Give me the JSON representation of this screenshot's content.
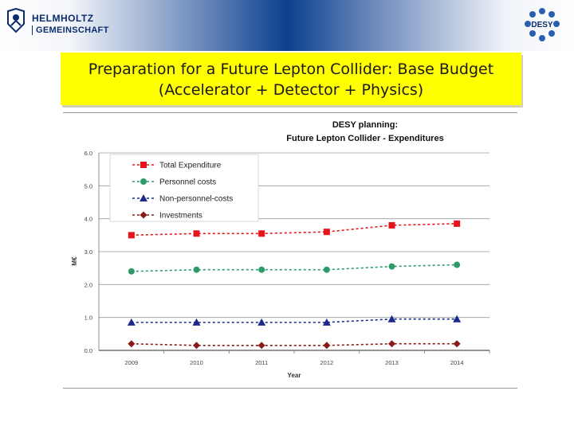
{
  "header": {
    "helmholtz_line1": "HELMHOLTZ",
    "helmholtz_line2": "GEMEINSCHAFT",
    "desy_logo_text": "DESY"
  },
  "slide": {
    "title_line1": "Preparation for a Future Lepton Collider: Base Budget",
    "title_line2": "(Accelerator + Detector + Physics)"
  },
  "chart_data": {
    "type": "line",
    "title": "DESY planning:",
    "subtitle": "Future Lepton Collider - Expenditures",
    "xlabel": "Year",
    "ylabel": "M€",
    "categories": [
      "2009",
      "2010",
      "2011",
      "2012",
      "2013",
      "2014"
    ],
    "yticks": [
      "0.0",
      "1.0",
      "2.0",
      "3.0",
      "4.0",
      "5.0",
      "6.0"
    ],
    "ylim": [
      0,
      6
    ],
    "grid": true,
    "legend_position": "top-left",
    "series": [
      {
        "name": "Total Expenditure",
        "color": "#e8141c",
        "marker": "square",
        "values": [
          3.5,
          3.55,
          3.55,
          3.6,
          3.8,
          3.85
        ]
      },
      {
        "name": "Personnel costs",
        "color": "#2e9b6a",
        "marker": "circle",
        "values": [
          2.4,
          2.45,
          2.45,
          2.45,
          2.55,
          2.6
        ]
      },
      {
        "name": "Non-personnel-costs",
        "color": "#1a2a8c",
        "marker": "triangle",
        "values": [
          0.85,
          0.85,
          0.85,
          0.85,
          0.95,
          0.95
        ]
      },
      {
        "name": "Investments",
        "color": "#8b1a1a",
        "marker": "diamond",
        "values": [
          0.2,
          0.15,
          0.15,
          0.15,
          0.2,
          0.2
        ]
      }
    ]
  }
}
